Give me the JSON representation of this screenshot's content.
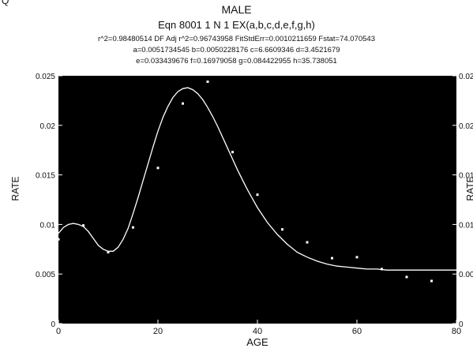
{
  "header": {
    "corner": "Q",
    "title": "MALE",
    "equation": "Eqn 8001  1 N  1  EX(a,b,c,d,e,f,g,h)",
    "stats": "r^2=0.98480514  DF Adj r^2=0.96743958  FitStdErr=0.0010211659  Fstat=74.070543",
    "params1": "a=0.0051734545 b=0.0050228176 c=6.6609346 d=3.4521679",
    "params2": "e=0.033439676 f=0.16979058 g=0.084422955 h=35.738051"
  },
  "chart_data": {
    "type": "scatter",
    "title": "MALE",
    "xlabel": "AGE",
    "ylabel": "RATE",
    "y2label": "RATE",
    "xlim": [
      0,
      80
    ],
    "ylim": [
      0,
      0.025
    ],
    "x_ticks": [
      0,
      20,
      40,
      60,
      80
    ],
    "x_tick_labels": [
      "0",
      "20",
      "40",
      "60",
      "80"
    ],
    "y_ticks": [
      0,
      0.005,
      0.01,
      0.015,
      0.02,
      0.025
    ],
    "y_tick_labels": [
      "0",
      "0.005",
      "0.01",
      "0.015",
      "0.02",
      "0.025"
    ],
    "grid": false,
    "background": "#000000",
    "foreground": "#ffffff",
    "points": {
      "x": [
        0,
        5,
        10,
        15,
        20,
        25,
        30,
        35,
        40,
        45,
        50,
        55,
        60,
        65,
        70,
        75
      ],
      "y": [
        0.0085,
        0.0099,
        0.0072,
        0.0097,
        0.0157,
        0.0222,
        0.0244,
        0.0173,
        0.013,
        0.0095,
        0.0082,
        0.0066,
        0.0067,
        0.0055,
        0.0047,
        0.0043
      ]
    },
    "fit_curve": {
      "x": [
        0,
        1,
        2,
        3,
        4,
        5,
        6,
        7,
        8,
        9,
        10,
        11,
        12,
        13,
        14,
        15,
        16,
        17,
        18,
        19,
        20,
        21,
        22,
        23,
        24,
        25,
        26,
        27,
        28,
        29,
        30,
        31,
        32,
        33,
        34,
        35,
        36,
        37,
        38,
        39,
        40,
        42,
        44,
        46,
        48,
        50,
        52,
        54,
        56,
        58,
        60,
        62,
        64,
        66,
        68,
        70,
        72,
        74,
        76,
        78,
        80
      ],
      "y": [
        0.0091,
        0.0097,
        0.01,
        0.0101,
        0.01,
        0.0098,
        0.0093,
        0.0086,
        0.0079,
        0.0075,
        0.0073,
        0.0073,
        0.0077,
        0.0085,
        0.0096,
        0.0111,
        0.0127,
        0.0144,
        0.0161,
        0.0178,
        0.0194,
        0.0208,
        0.0219,
        0.0228,
        0.0234,
        0.0237,
        0.0238,
        0.0236,
        0.0232,
        0.0226,
        0.0218,
        0.0209,
        0.0199,
        0.0188,
        0.0177,
        0.0166,
        0.0155,
        0.0145,
        0.0135,
        0.0126,
        0.0117,
        0.0102,
        0.009,
        0.008,
        0.0072,
        0.0067,
        0.0063,
        0.006,
        0.0058,
        0.0057,
        0.0056,
        0.0055,
        0.0055,
        0.0054,
        0.0054,
        0.0054,
        0.0054,
        0.0054,
        0.0054,
        0.0054,
        0.0054
      ]
    }
  }
}
